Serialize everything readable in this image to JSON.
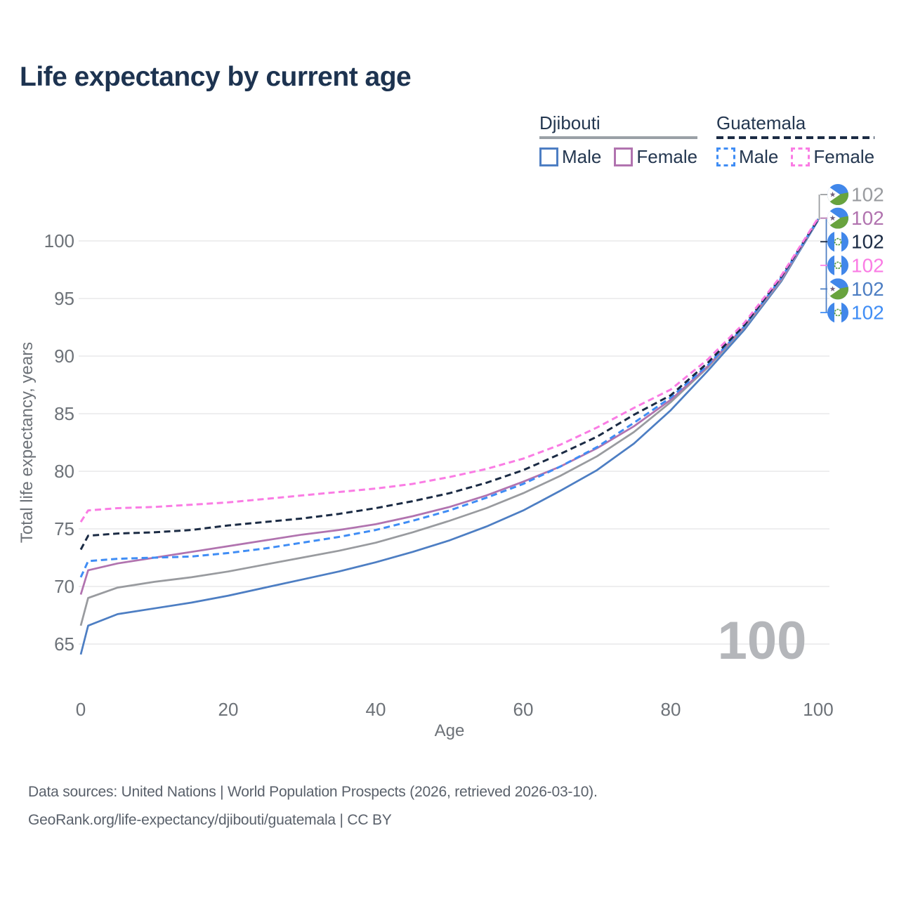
{
  "title": "Life expectancy by current age",
  "watermark": {
    "text": "100"
  },
  "legend": {
    "position": "top-right",
    "groups": [
      {
        "country": "Djibouti",
        "line_style": "solid",
        "underline_color": "#9aa0a6",
        "items": [
          {
            "label": "Male",
            "color": "#4d7ec3"
          },
          {
            "label": "Female",
            "color": "#b173af"
          }
        ]
      },
      {
        "country": "Guatemala",
        "line_style": "dashed",
        "underline_color": "#1b2b44",
        "items": [
          {
            "label": "Male",
            "color": "#3f8df5"
          },
          {
            "label": "Female",
            "color": "#fa7ce4"
          }
        ]
      }
    ]
  },
  "chart_data": {
    "type": "line",
    "title": "Life expectancy by current age",
    "xlabel": "Age",
    "ylabel": "Total life expectancy, years",
    "grid": "horizontal",
    "x_ticks": [
      0,
      20,
      40,
      60,
      80,
      100
    ],
    "y_ticks": [
      65,
      70,
      75,
      80,
      85,
      90,
      95,
      100
    ],
    "xlim": [
      0,
      100
    ],
    "ylim": [
      63,
      103
    ],
    "x": [
      0,
      1,
      5,
      10,
      15,
      20,
      25,
      30,
      35,
      40,
      45,
      50,
      55,
      60,
      65,
      70,
      75,
      80,
      85,
      90,
      95,
      100
    ],
    "series": [
      {
        "id": "dj-male",
        "name": "Djibouti Male",
        "country": "Djibouti",
        "sex": "Male",
        "color": "#4d7ec3",
        "dashed": false,
        "values": [
          64.1,
          66.6,
          67.6,
          68.1,
          68.6,
          69.2,
          69.9,
          70.6,
          71.3,
          72.1,
          73.0,
          74.0,
          75.2,
          76.6,
          78.3,
          80.1,
          82.4,
          85.3,
          88.7,
          92.3,
          96.5,
          101.8
        ]
      },
      {
        "id": "dj-total",
        "name": "Djibouti Total",
        "country": "Djibouti",
        "sex": "Total",
        "color": "#999b9f",
        "dashed": false,
        "values": [
          66.6,
          69.0,
          69.9,
          70.4,
          70.8,
          71.3,
          71.9,
          72.5,
          73.1,
          73.8,
          74.7,
          75.7,
          76.8,
          78.1,
          79.6,
          81.3,
          83.4,
          86.0,
          89.0,
          92.5,
          96.6,
          101.9
        ]
      },
      {
        "id": "dj-female",
        "name": "Djibouti Female",
        "country": "Djibouti",
        "sex": "Female",
        "color": "#b173af",
        "dashed": false,
        "values": [
          69.3,
          71.4,
          72.0,
          72.5,
          73.0,
          73.5,
          74.0,
          74.5,
          74.9,
          75.4,
          76.1,
          76.9,
          77.9,
          79.1,
          80.4,
          82.0,
          83.9,
          86.2,
          89.1,
          92.6,
          96.7,
          101.9
        ]
      },
      {
        "id": "gt-male",
        "name": "Guatemala Male",
        "country": "Guatemala",
        "sex": "Male",
        "color": "#3f8df5",
        "dashed": true,
        "values": [
          70.8,
          72.2,
          72.4,
          72.5,
          72.6,
          72.9,
          73.3,
          73.8,
          74.3,
          74.9,
          75.7,
          76.6,
          77.7,
          78.9,
          80.4,
          82.1,
          84.2,
          86.4,
          89.2,
          92.6,
          96.8,
          101.9
        ]
      },
      {
        "id": "gt-total",
        "name": "Guatemala Total",
        "country": "Guatemala",
        "sex": "Total",
        "color": "#1b2b44",
        "dashed": true,
        "values": [
          73.2,
          74.4,
          74.6,
          74.7,
          74.9,
          75.3,
          75.6,
          75.9,
          76.3,
          76.8,
          77.4,
          78.1,
          79.0,
          80.1,
          81.5,
          83.0,
          84.9,
          86.6,
          89.4,
          92.7,
          96.9,
          101.9
        ]
      },
      {
        "id": "gt-female",
        "name": "Guatemala Female",
        "country": "Guatemala",
        "sex": "Female",
        "color": "#fa7ce4",
        "dashed": true,
        "values": [
          75.6,
          76.6,
          76.8,
          76.9,
          77.1,
          77.3,
          77.6,
          77.9,
          78.2,
          78.5,
          78.9,
          79.5,
          80.2,
          81.1,
          82.3,
          83.8,
          85.5,
          87.1,
          89.7,
          92.9,
          97.0,
          102.0
        ]
      }
    ],
    "end_labels": [
      {
        "flag": "dj",
        "country": "Djibouti",
        "series": "Djibouti Total",
        "value": "102",
        "color": "#999b9f"
      },
      {
        "flag": "dj",
        "country": "Djibouti",
        "series": "Djibouti Female",
        "value": "102",
        "color": "#b173af"
      },
      {
        "flag": "gt",
        "country": "Guatemala",
        "series": "Guatemala Total",
        "value": "102",
        "color": "#1b2b44"
      },
      {
        "flag": "gt",
        "country": "Guatemala",
        "series": "Guatemala Female",
        "value": "102",
        "color": "#fa7ce4"
      },
      {
        "flag": "dj",
        "country": "Djibouti",
        "series": "Djibouti Male",
        "value": "102",
        "color": "#4d7ec3"
      },
      {
        "flag": "gt",
        "country": "Guatemala",
        "series": "Guatemala Male",
        "value": "102",
        "color": "#3f8df5"
      }
    ]
  },
  "footer": {
    "line1": "Data sources: United Nations | World Population Prospects (2026, retrieved 2026-03-10).",
    "line2": "GeoRank.org/life-expectancy/djibouti/guatemala | CC BY"
  }
}
